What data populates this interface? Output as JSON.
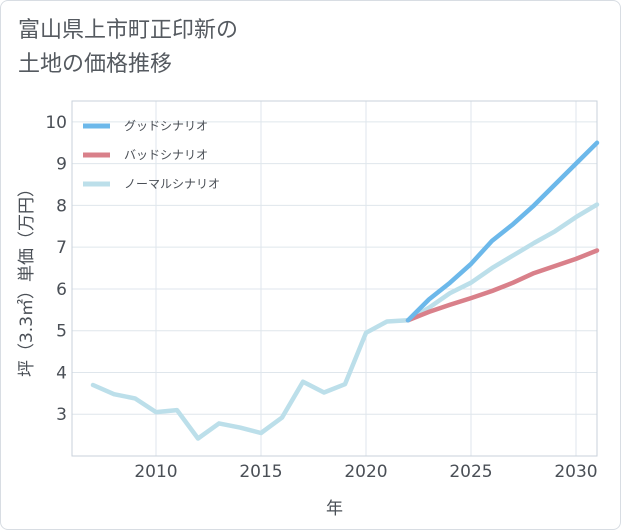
{
  "title": "富山県上市町正印新の\n土地の価格推移",
  "chart_data": {
    "type": "line",
    "xlabel": "年",
    "ylabel": "坪（3.3㎡）単価（万円）",
    "xlim": [
      2006,
      2031
    ],
    "ylim": [
      2,
      10.5
    ],
    "x_ticks": [
      2010,
      2015,
      2020,
      2025,
      2030
    ],
    "y_ticks": [
      3,
      4,
      5,
      6,
      7,
      8,
      9,
      10
    ],
    "grid": true,
    "legend_position": "top-left",
    "series": [
      {
        "name": "グッドシナリオ",
        "color": "#6cb8ea",
        "x": [
          2022,
          2023,
          2024,
          2025,
          2026,
          2027,
          2028,
          2029,
          2030,
          2031
        ],
        "values": [
          5.25,
          5.75,
          6.15,
          6.6,
          7.15,
          7.55,
          8.0,
          8.5,
          9.0,
          9.5
        ]
      },
      {
        "name": "バッドシナリオ",
        "color": "#d9808a",
        "x": [
          2022,
          2023,
          2024,
          2025,
          2026,
          2027,
          2028,
          2029,
          2030,
          2031
        ],
        "values": [
          5.25,
          5.45,
          5.62,
          5.78,
          5.95,
          6.15,
          6.38,
          6.55,
          6.72,
          6.92
        ]
      },
      {
        "name": "ノーマルシナリオ",
        "color": "#bcdfea",
        "x": [
          2007,
          2008,
          2009,
          2010,
          2011,
          2012,
          2013,
          2014,
          2015,
          2016,
          2017,
          2018,
          2019,
          2020,
          2021,
          2022,
          2023,
          2024,
          2025,
          2026,
          2027,
          2028,
          2029,
          2030,
          2031
        ],
        "values": [
          3.7,
          3.48,
          3.38,
          3.05,
          3.1,
          2.42,
          2.78,
          2.68,
          2.55,
          2.92,
          3.78,
          3.52,
          3.72,
          4.95,
          5.22,
          5.25,
          5.55,
          5.9,
          6.15,
          6.5,
          6.8,
          7.1,
          7.38,
          7.72,
          8.02
        ]
      }
    ]
  }
}
